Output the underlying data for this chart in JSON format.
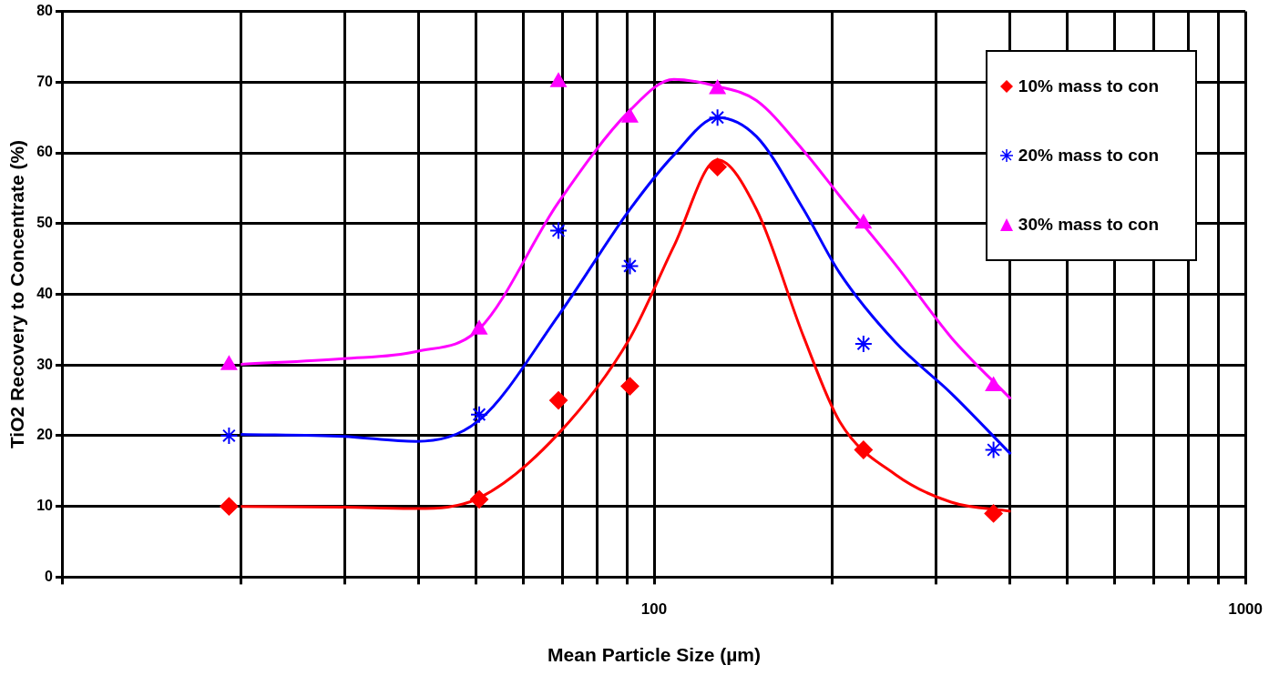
{
  "chart_data": {
    "type": "scatter",
    "xlabel": "Mean Particle Size (µm)",
    "ylabel": "TiO2 Recovery to Concentrate (%)",
    "log": "x",
    "grid": true,
    "legend": "top right",
    "xlim": [
      10,
      1000
    ],
    "ylim": [
      0,
      80
    ],
    "xticks": [
      {
        "value": 10,
        "label": null
      },
      {
        "value": 20,
        "label": null
      },
      {
        "value": 30,
        "label": null
      },
      {
        "value": 40,
        "label": null
      },
      {
        "value": 50,
        "label": null
      },
      {
        "value": 60,
        "label": null
      },
      {
        "value": 70,
        "label": null
      },
      {
        "value": 80,
        "label": null
      },
      {
        "value": 90,
        "label": null
      },
      100,
      {
        "value": 200,
        "label": null
      },
      {
        "value": 300,
        "label": null
      },
      {
        "value": 400,
        "label": null
      },
      {
        "value": 500,
        "label": null
      },
      {
        "value": 600,
        "label": null
      },
      {
        "value": 700,
        "label": null
      },
      {
        "value": 800,
        "label": null
      },
      {
        "value": 900,
        "label": null
      },
      1000
    ],
    "yticks": [
      0,
      10,
      20,
      30,
      40,
      50,
      60,
      70,
      80
    ],
    "series": [
      {
        "type": "line",
        "color": "#ff0000",
        "marker": "none",
        "x": [
          20,
          29.8,
          39.6,
          50.6,
          68.9,
          91,
          108,
          128,
          149,
          179,
          206,
          256,
          318,
          401
        ],
        "values": [
          10,
          9.9,
          9.7,
          11.2,
          20.3,
          33.8,
          46.8,
          59,
          52,
          34,
          22,
          14.5,
          10.6,
          9.3
        ]
      },
      {
        "type": "line",
        "color": "#0000ff",
        "marker": "none",
        "x": [
          20,
          29.8,
          39.6,
          50.6,
          68.9,
          91,
          108,
          128,
          149,
          179,
          206,
          256,
          318,
          401
        ],
        "values": [
          20.2,
          19.9,
          19.2,
          22.2,
          37,
          52,
          59.7,
          65,
          62.3,
          52,
          43,
          33.2,
          26,
          17.4
        ]
      },
      {
        "type": "line",
        "color": "#ff00ff",
        "marker": "none",
        "x": [
          20,
          29.8,
          39.6,
          50.6,
          68.9,
          91,
          108,
          128,
          149,
          179,
          206,
          256,
          318,
          401
        ],
        "values": [
          30.1,
          30.9,
          31.9,
          35.1,
          53,
          66,
          70.4,
          69.4,
          67.4,
          60.3,
          53.9,
          44.2,
          33.9,
          25.2
        ]
      },
      {
        "name": "10% mass to con",
        "color": "#ff0000",
        "marker": "diamond",
        "x": [
          19.1,
          50.6,
          68.9,
          91,
          128,
          226,
          375
        ],
        "values": [
          10,
          11,
          25,
          27,
          58,
          18,
          9
        ]
      },
      {
        "name": "20% mass to con",
        "color": "#0000ff",
        "marker": "cross",
        "x": [
          19.1,
          50.6,
          68.9,
          91,
          128,
          226,
          375
        ],
        "values": [
          20,
          23,
          49,
          44,
          65,
          33,
          18
        ]
      },
      {
        "name": "30% mass to con",
        "color": "#ff00ff",
        "marker": "triangle",
        "x": [
          19.1,
          50.6,
          68.9,
          91,
          128,
          226,
          375
        ],
        "values": [
          30,
          35,
          70,
          65,
          69,
          50,
          27
        ]
      }
    ]
  }
}
